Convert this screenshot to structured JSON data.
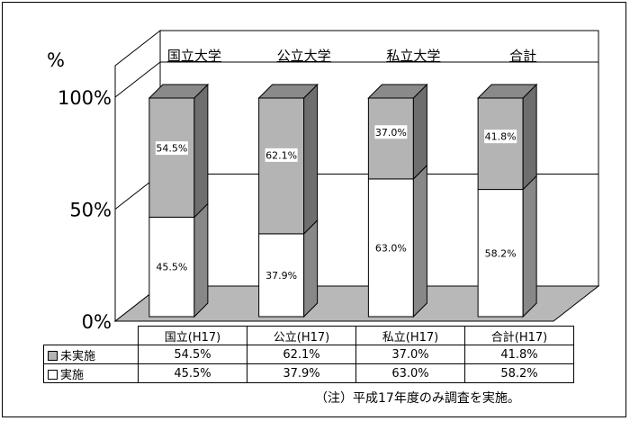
{
  "chart_data": {
    "type": "bar",
    "stacked": true,
    "three_d": true,
    "y_unit_label": "%",
    "yticks": [
      "0%",
      "50%",
      "100%"
    ],
    "ylim": [
      0,
      100
    ],
    "group_titles": [
      "国立大学",
      "公立大学",
      "私立大学",
      "合計"
    ],
    "categories": [
      "国立(H17)",
      "公立(H17)",
      "私立(H17)",
      "合計(H17)"
    ],
    "series": [
      {
        "name": "実施",
        "color": "#ffffff",
        "values": [
          45.5,
          37.9,
          63.0,
          58.2
        ],
        "labels": [
          "45.5%",
          "37.9%",
          "63.0%",
          "58.2%"
        ]
      },
      {
        "name": "未実施",
        "color": "#b4b4b4",
        "values": [
          54.5,
          62.1,
          37.0,
          41.8
        ],
        "labels": [
          "54.5%",
          "62.1%",
          "37.0%",
          "41.8%"
        ]
      }
    ],
    "legend_placement": "data-table",
    "gridlines": true,
    "colors": {
      "wall": "#ffffff",
      "floor": "#b8b8b8",
      "front_top": "#b4b4b4",
      "side_top": "#6e6e6e",
      "side_bottom": "#888888",
      "top_face": "#8a8a8a"
    }
  },
  "table": {
    "rows": [
      {
        "label": "未実施",
        "swatch": "#b4b4b4",
        "values": [
          "54.5%",
          "62.1%",
          "37.0%",
          "41.8%"
        ]
      },
      {
        "label": "実施",
        "swatch": "#ffffff",
        "values": [
          "45.5%",
          "37.9%",
          "63.0%",
          "58.2%"
        ]
      }
    ]
  },
  "note": "（注）平成17年度のみ調査を実施。"
}
